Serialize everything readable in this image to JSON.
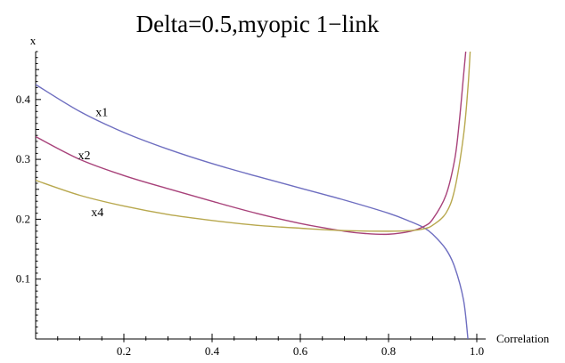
{
  "chart_data": {
    "type": "line",
    "title": "Delta=0.5,myopic 1−link",
    "xlabel": "Correlation",
    "ylabel": "x",
    "xlim": [
      0.0,
      1.0
    ],
    "ylim": [
      0.0,
      0.48
    ],
    "x_ticks": [
      0.2,
      0.4,
      0.6,
      0.8,
      1.0
    ],
    "x_tick_labels": [
      "0.2",
      "0.4",
      "0.6",
      "0.8",
      "1.0"
    ],
    "y_ticks": [
      0.1,
      0.2,
      0.3,
      0.4
    ],
    "y_tick_labels": [
      "0.1",
      "0.2",
      "0.3",
      "0.4"
    ],
    "grid": false,
    "legend": "none",
    "series": [
      {
        "name": "x1",
        "color": "#6e6ec0",
        "x": [
          0.0,
          0.1,
          0.2,
          0.3,
          0.4,
          0.5,
          0.6,
          0.7,
          0.8,
          0.85,
          0.88,
          0.9,
          0.93,
          0.95,
          0.97,
          0.98
        ],
        "y": [
          0.425,
          0.38,
          0.345,
          0.317,
          0.293,
          0.272,
          0.252,
          0.232,
          0.21,
          0.196,
          0.186,
          0.175,
          0.15,
          0.12,
          0.065,
          0.0
        ]
      },
      {
        "name": "x2",
        "color": "#a8427a",
        "x": [
          0.0,
          0.1,
          0.2,
          0.3,
          0.4,
          0.5,
          0.6,
          0.7,
          0.75,
          0.8,
          0.85,
          0.88,
          0.9,
          0.93,
          0.95,
          0.96,
          0.97,
          0.975
        ],
        "y": [
          0.338,
          0.3,
          0.273,
          0.251,
          0.23,
          0.21,
          0.193,
          0.18,
          0.176,
          0.175,
          0.18,
          0.188,
          0.2,
          0.24,
          0.3,
          0.36,
          0.44,
          0.48
        ]
      },
      {
        "name": "x4",
        "color": "#b8a84e",
        "x": [
          0.0,
          0.1,
          0.2,
          0.3,
          0.4,
          0.5,
          0.6,
          0.7,
          0.8,
          0.85,
          0.88,
          0.9,
          0.93,
          0.95,
          0.97,
          0.98,
          0.985
        ],
        "y": [
          0.265,
          0.24,
          0.222,
          0.208,
          0.198,
          0.19,
          0.185,
          0.181,
          0.18,
          0.181,
          0.184,
          0.19,
          0.21,
          0.25,
          0.34,
          0.42,
          0.48
        ]
      }
    ],
    "annotations": [
      {
        "text": "x1",
        "x": 0.15,
        "y": 0.372
      },
      {
        "text": "x2",
        "x": 0.11,
        "y": 0.3
      },
      {
        "text": "x4",
        "x": 0.14,
        "y": 0.205
      }
    ]
  }
}
